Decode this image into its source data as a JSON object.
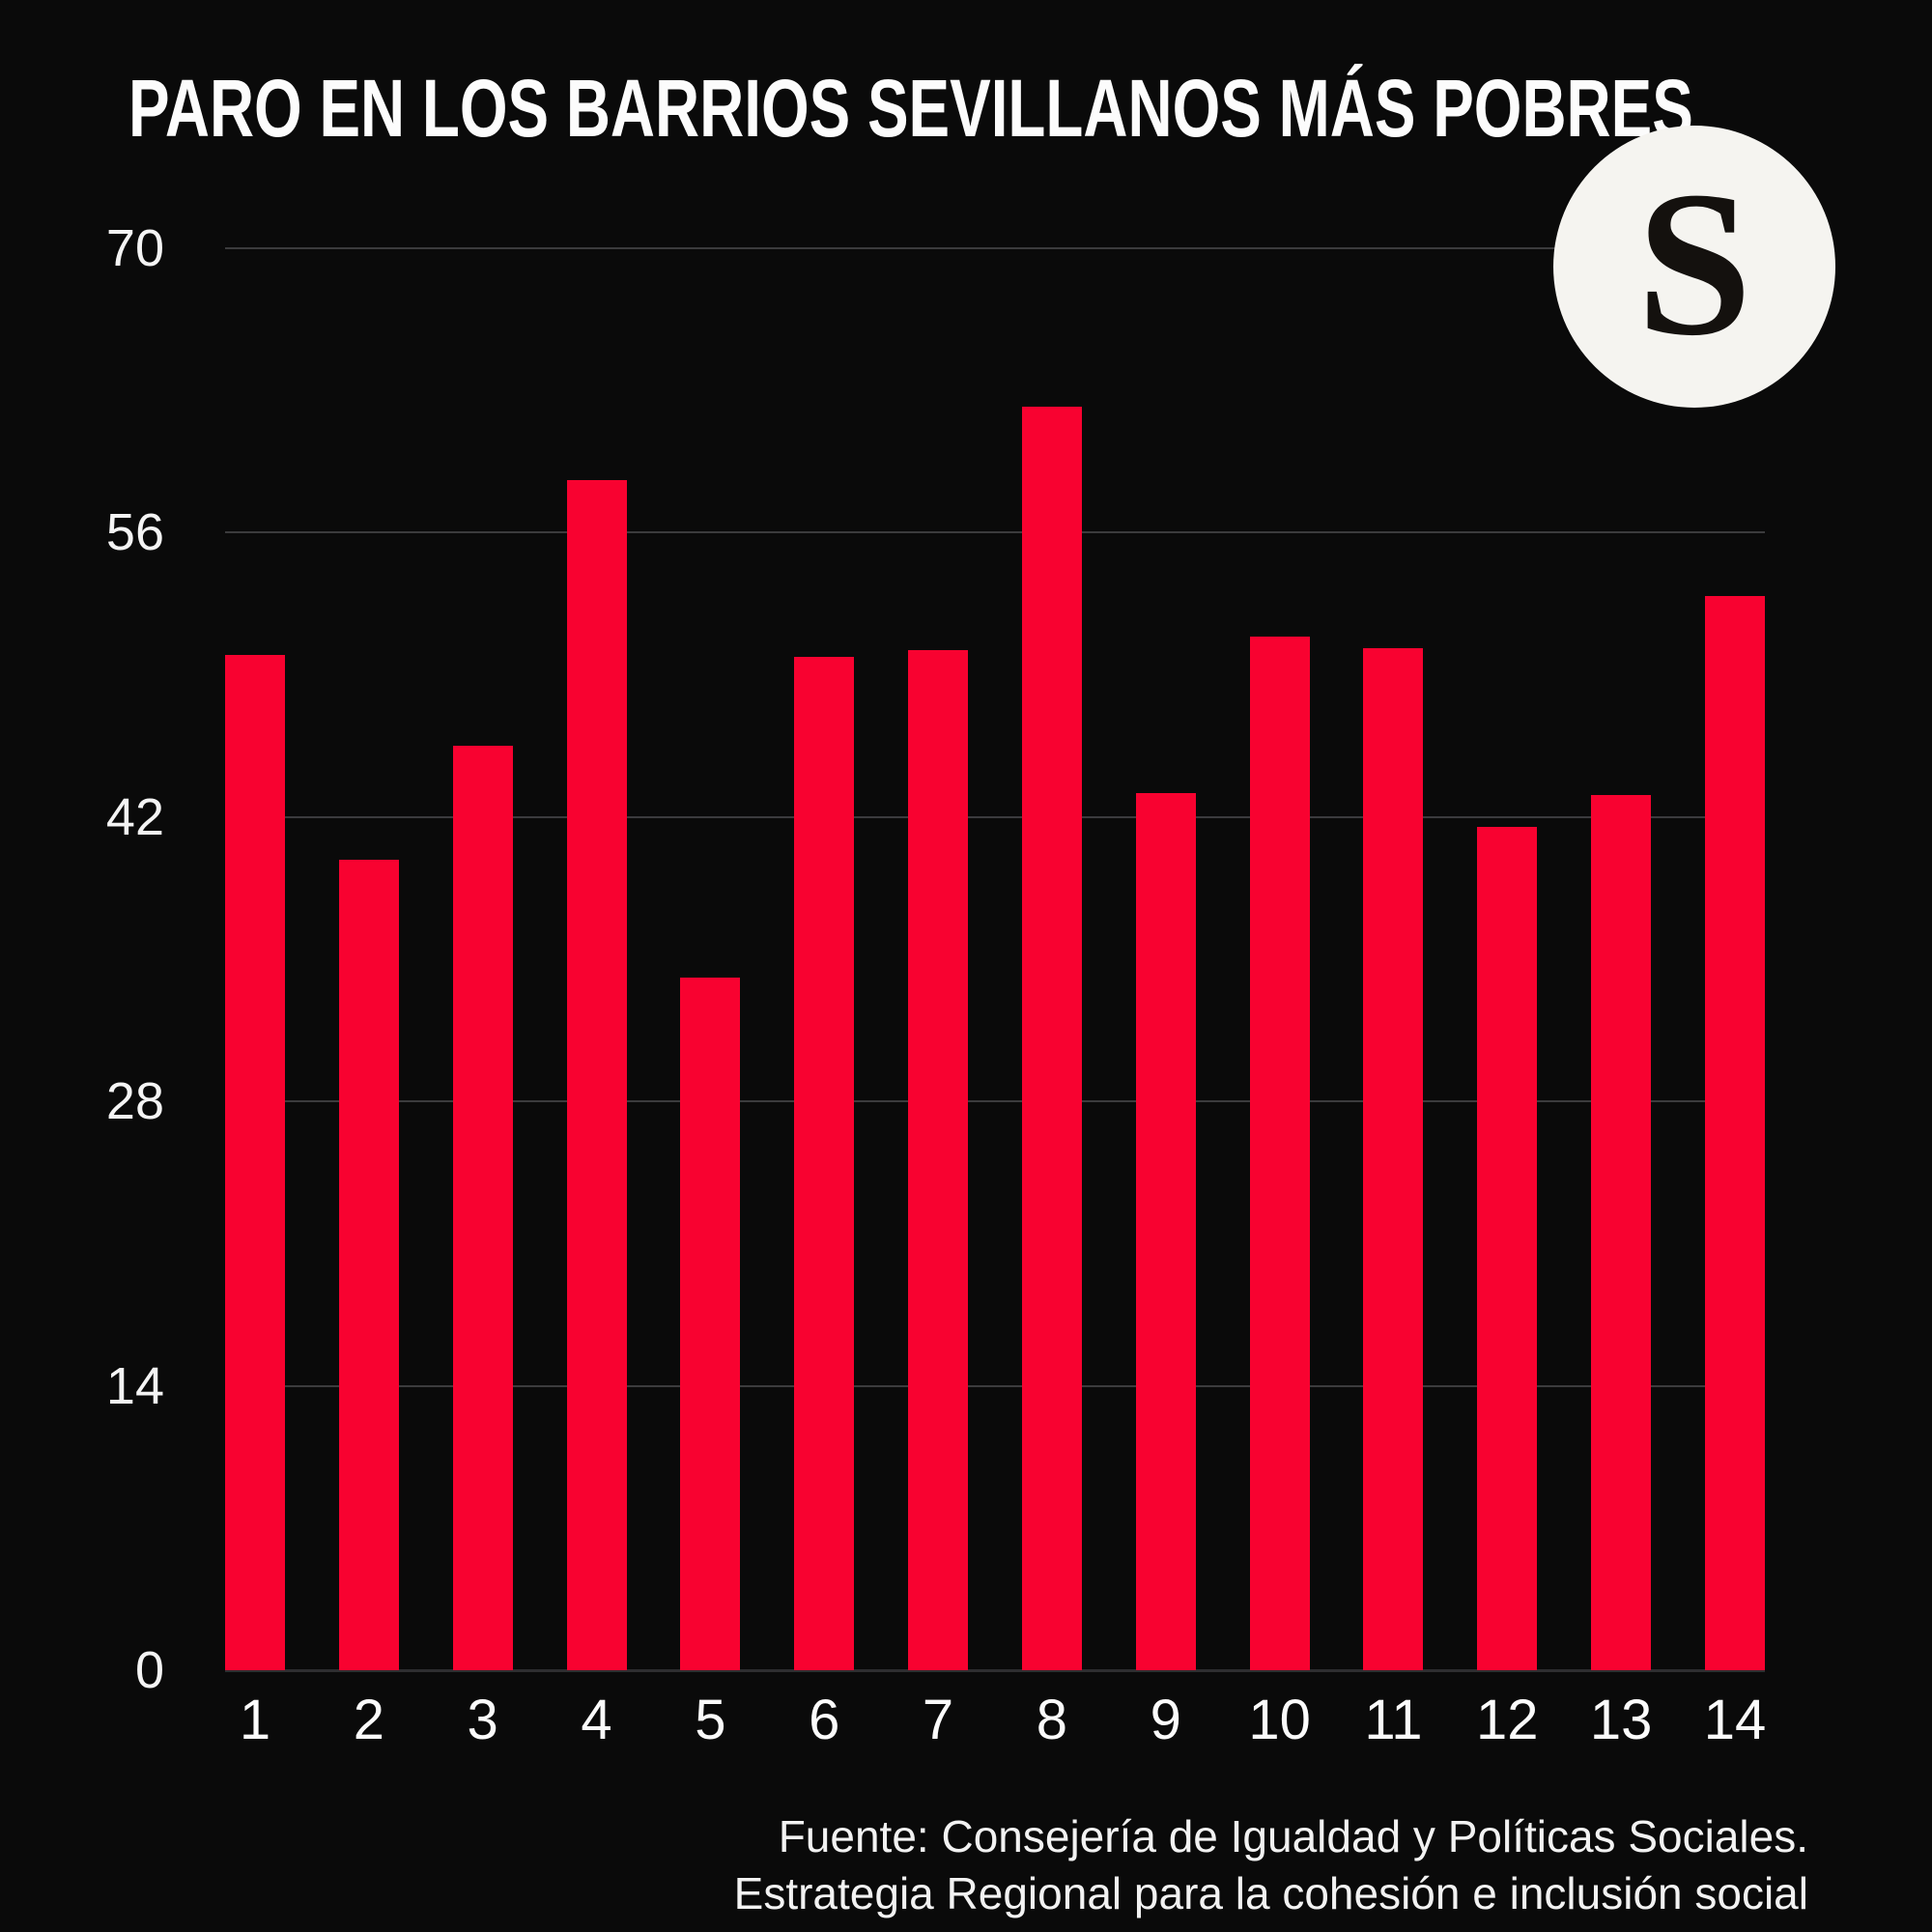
{
  "title": "PARO EN LOS BARRIOS SEVILLANOS MÁS POBRES",
  "logo": {
    "letter": "S"
  },
  "source": {
    "line1": "Fuente: Consejería de Igualdad y Políticas Sociales.",
    "line2": "Estrategia Regional para la cohesión e inclusión social"
  },
  "colors": {
    "background": "#0a0a0a",
    "bar": "#f80230",
    "gridline": "#3b3b3d",
    "text": "#f4f4f4",
    "logo_background": "#f5f4f0",
    "logo_letter": "#14110e"
  },
  "chart_data": {
    "type": "bar",
    "title": "PARO EN LOS BARRIOS SEVILLANOS MÁS POBRES",
    "categories": [
      "1",
      "2",
      "3",
      "4",
      "5",
      "6",
      "7",
      "8",
      "9",
      "10",
      "11",
      "12",
      "13",
      "14"
    ],
    "values": [
      50.0,
      39.9,
      45.5,
      58.6,
      34.1,
      49.9,
      50.2,
      62.2,
      43.2,
      50.9,
      50.3,
      41.5,
      43.1,
      52.9
    ],
    "xlabel": "",
    "ylabel": "",
    "y_ticks": [
      0,
      14,
      28,
      42,
      56,
      70
    ],
    "ylim": [
      0,
      70
    ],
    "grid": true,
    "legend": false,
    "bar_color": "#f80230"
  }
}
